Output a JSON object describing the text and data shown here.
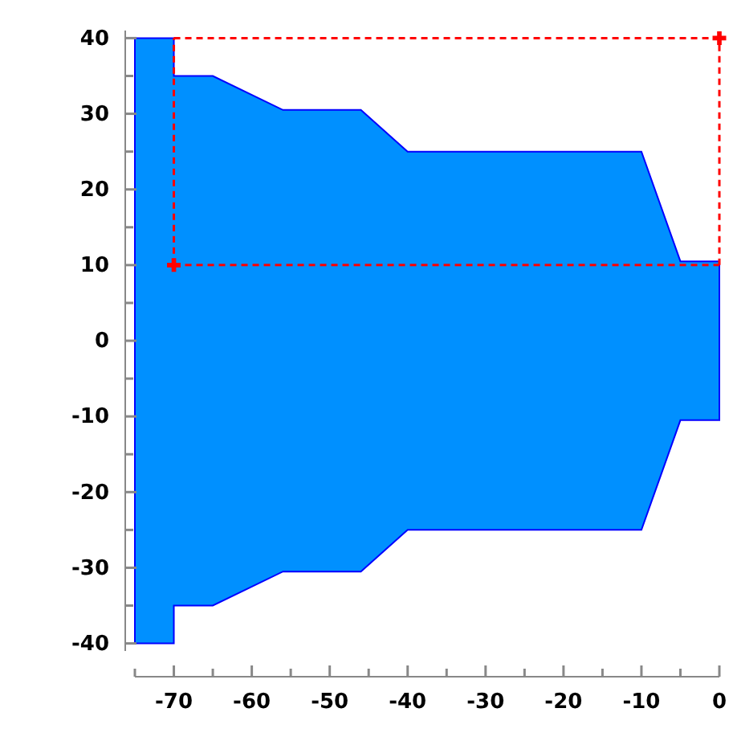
{
  "chart_data": {
    "type": "area",
    "xlim": [
      -75,
      0
    ],
    "ylim": [
      -41,
      41
    ],
    "xticks": [
      {
        "value": -75,
        "label": null
      },
      -70,
      {
        "value": -65,
        "label": null
      },
      -60,
      {
        "value": -55,
        "label": null
      },
      -50,
      {
        "value": -45,
        "label": null
      },
      -40,
      {
        "value": -35,
        "label": null
      },
      -30,
      {
        "value": -25,
        "label": null
      },
      -20,
      {
        "value": -15,
        "label": null
      },
      -10,
      {
        "value": -5,
        "label": null
      },
      0
    ],
    "yticks": [
      -40,
      {
        "value": -35,
        "label": null
      },
      -30,
      {
        "value": -25,
        "label": null
      },
      -20,
      {
        "value": -15,
        "label": null
      },
      -10,
      {
        "value": -5,
        "label": null
      },
      0,
      {
        "value": 5,
        "label": null
      },
      10,
      {
        "value": 15,
        "label": null
      },
      20,
      {
        "value": 25,
        "label": null
      },
      30,
      {
        "value": 35,
        "label": null
      },
      40
    ],
    "grid": false,
    "series": [
      {
        "color": "#0090ff",
        "x": [
          -75,
          -70,
          -70,
          -65,
          -56,
          -46,
          -40,
          -10,
          -5,
          0
        ],
        "values": [
          40,
          40,
          35,
          35,
          30.5,
          30.5,
          25,
          25,
          10.5,
          10.5
        ]
      },
      {
        "color": "#0090ff",
        "x": [
          -75,
          -70,
          -70,
          -65,
          -56,
          -46,
          -40,
          -10,
          -5,
          0
        ],
        "values": [
          -40,
          -40,
          -35,
          -35,
          -30.5,
          -30.5,
          -25,
          -25,
          -10.5,
          -10.5
        ]
      },
      {
        "type": "line",
        "color": "#ff0000",
        "line_style": "dashed",
        "marker": "none",
        "x": [
          -70,
          0
        ],
        "values": [
          10,
          10
        ]
      },
      {
        "type": "line",
        "color": "#ff0000",
        "line_style": "dashed",
        "marker": "none",
        "x": [
          -70,
          0
        ],
        "values": [
          40,
          40
        ]
      },
      {
        "type": "line",
        "color": "#ff0000",
        "line_style": "dashed",
        "marker": "none",
        "x": [
          -70,
          -70
        ],
        "values": [
          10,
          40
        ]
      },
      {
        "type": "line",
        "color": "#ff0000",
        "line_style": "dashed",
        "marker": "none",
        "x": [
          0,
          0
        ],
        "values": [
          10,
          40
        ]
      },
      {
        "type": "scatter",
        "color": "#ff0000",
        "marker": "cross",
        "x": [
          -70,
          0
        ],
        "values": [
          10,
          40
        ]
      }
    ]
  }
}
